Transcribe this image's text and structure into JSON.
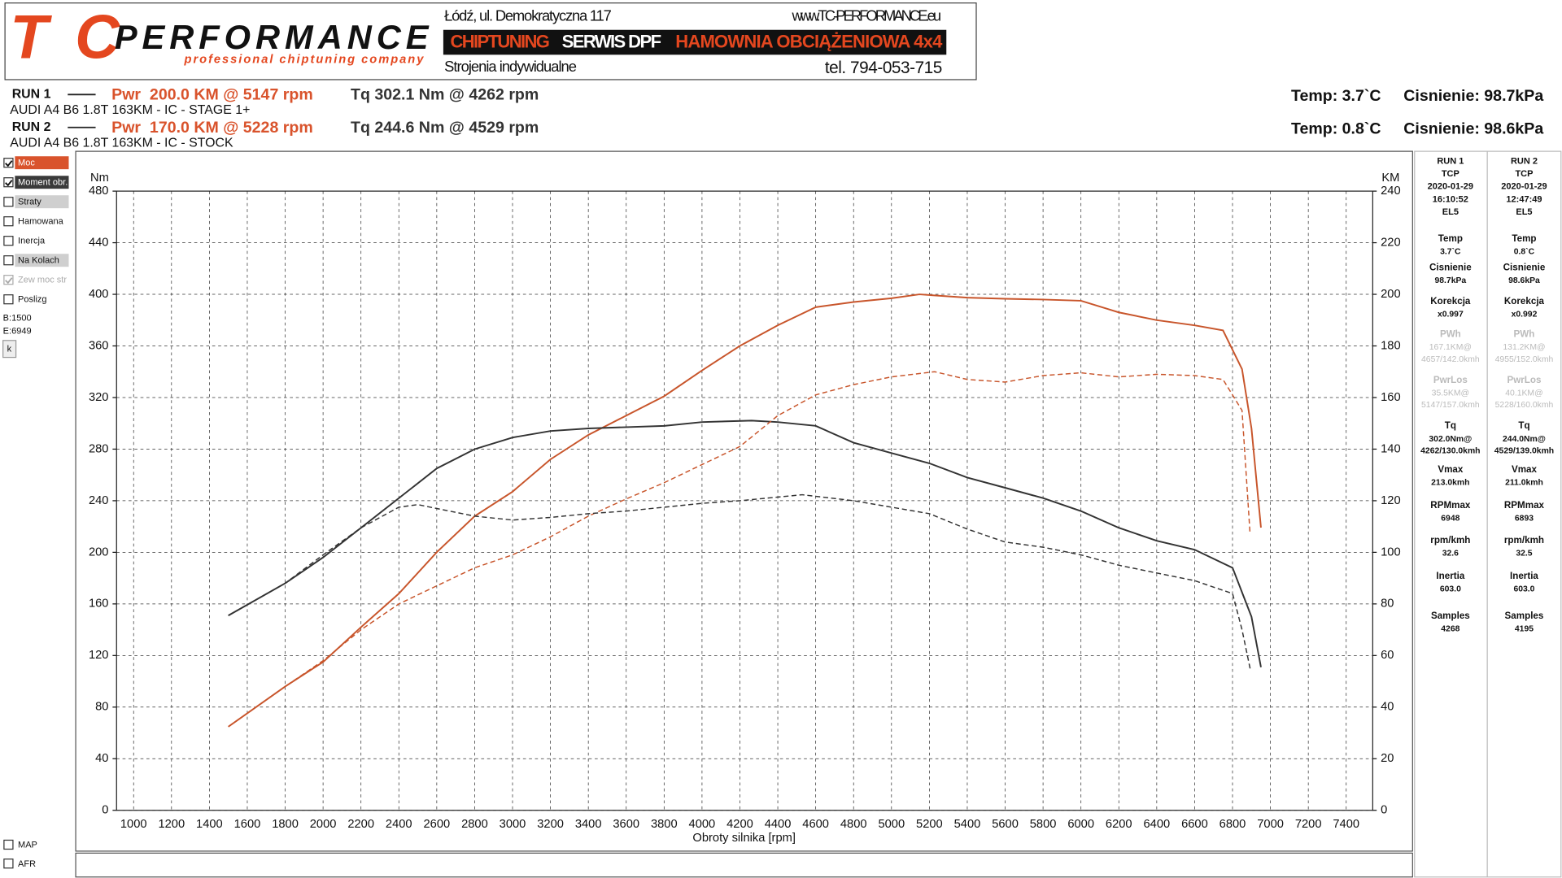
{
  "header": {
    "logo_tc": "TC",
    "logo_name": "PERFORMANCE",
    "logo_tagline": "professional chiptuning company",
    "address": "Łódź, ul. Demokratyczna 117",
    "website": "www.TC-PERFORMANCE.eu",
    "banner": [
      "CHIPTUNING",
      "SERWIS DPF",
      "HAMOWNIA OBCIĄŻENIOWA 4x4"
    ],
    "subline": "Strojenia indywidualne",
    "phone": "tel. 794-053-715"
  },
  "runs": [
    {
      "label": "RUN 1",
      "power": "Pwr  200.0 KM @ 5147 rpm",
      "torque": "Tq 302.1 Nm @ 4262 rpm",
      "car": "AUDI A4 B6 1.8T 163KM - IC - STAGE 1+",
      "temp": "Temp: 3.7`C",
      "pressure": "Cisnienie: 98.7kPa"
    },
    {
      "label": "RUN 2",
      "power": "Pwr  170.0 KM @ 5228 rpm",
      "torque": "Tq 244.6 Nm @ 4529 rpm",
      "car": "AUDI A4 B6 1.8T 163KM - IC - STOCK",
      "temp": "Temp: 0.8`C",
      "pressure": "Cisnienie: 98.6kPa"
    }
  ],
  "checkboxes": [
    {
      "label": "Moc",
      "checked": true,
      "color": "#d9532c"
    },
    {
      "label": "Moment obr.",
      "checked": true,
      "color": "#3a3a3a"
    },
    {
      "label": "Straty",
      "checked": false,
      "color": "#cfcfcf"
    },
    {
      "label": "Hamowana",
      "checked": false
    },
    {
      "label": "Inercja",
      "checked": false
    },
    {
      "label": "Na Kolach",
      "checked": false,
      "color": "#cfcfcf"
    },
    {
      "label": "Zew moc str",
      "checked": true,
      "disabled": true
    },
    {
      "label": "Poslizg",
      "checked": false
    }
  ],
  "range": [
    "B:1500",
    "E:6949"
  ],
  "button": "k",
  "bottom_checkboxes": [
    "MAP",
    "AFR"
  ],
  "panel": [
    {
      "head": [
        "RUN 1",
        "TCP",
        "2020-01-29",
        "16:10:52",
        "EL5"
      ],
      "items": [
        {
          "label": "Temp",
          "value": [
            "3.7`C"
          ]
        },
        {
          "label": "Cisnienie",
          "value": [
            "98.7kPa"
          ]
        },
        {
          "label": "Korekcja",
          "value": [
            "x0.997"
          ]
        },
        {
          "label": "PWh",
          "value": [
            "167.1KM@",
            "4657/142.0kmh"
          ],
          "muted": true
        },
        {
          "label": "PwrLos",
          "value": [
            "35.5KM@",
            "5147/157.0kmh"
          ],
          "muted": true
        },
        {
          "label": "Tq",
          "value": [
            "302.0Nm@",
            "4262/130.0kmh"
          ]
        },
        {
          "label": "Vmax",
          "value": [
            "213.0kmh"
          ]
        },
        {
          "label": "RPMmax",
          "value": [
            "6948"
          ]
        },
        {
          "label": "rpm/kmh",
          "value": [
            "32.6"
          ]
        },
        {
          "label": "Inertia",
          "value": [
            "603.0"
          ]
        },
        {
          "label": "Samples",
          "value": [
            "4268"
          ]
        }
      ]
    },
    {
      "head": [
        "RUN 2",
        "TCP",
        "2020-01-29",
        "12:47:49",
        "EL5"
      ],
      "items": [
        {
          "label": "Temp",
          "value": [
            "0.8`C"
          ]
        },
        {
          "label": "Cisnienie",
          "value": [
            "98.6kPa"
          ]
        },
        {
          "label": "Korekcja",
          "value": [
            "x0.992"
          ]
        },
        {
          "label": "PWh",
          "value": [
            "131.2KM@",
            "4955/152.0kmh"
          ],
          "muted": true
        },
        {
          "label": "PwrLos",
          "value": [
            "40.1KM@",
            "5228/160.0kmh"
          ],
          "muted": true
        },
        {
          "label": "Tq",
          "value": [
            "244.0Nm@",
            "4529/139.0kmh"
          ]
        },
        {
          "label": "Vmax",
          "value": [
            "211.0kmh"
          ]
        },
        {
          "label": "RPMmax",
          "value": [
            "6893"
          ]
        },
        {
          "label": "rpm/kmh",
          "value": [
            "32.5"
          ]
        },
        {
          "label": "Inertia",
          "value": [
            "603.0"
          ]
        },
        {
          "label": "Samples",
          "value": [
            "4195"
          ]
        }
      ]
    }
  ],
  "chart_data": {
    "type": "line",
    "x_label": "Obroty silnika [rpm]",
    "y_label": "Nm",
    "y2_label": "KM",
    "grid": true,
    "xlim": [
      910,
      7540
    ],
    "ylim": [
      0,
      480
    ],
    "y2lim": [
      0,
      240
    ],
    "xticks": [
      1000,
      1200,
      1400,
      1600,
      1800,
      2000,
      2200,
      2400,
      2600,
      2800,
      3000,
      3200,
      3400,
      3600,
      3800,
      4000,
      4200,
      4400,
      4600,
      4800,
      5000,
      5200,
      5400,
      5600,
      5800,
      6000,
      6200,
      6400,
      6600,
      6800,
      7000,
      7200,
      7400
    ],
    "yticks": [
      0,
      40,
      80,
      120,
      160,
      200,
      240,
      280,
      320,
      360,
      400,
      440,
      480
    ],
    "y2ticks": [
      0,
      20,
      40,
      60,
      80,
      100,
      120,
      140,
      160,
      180,
      200,
      220,
      240
    ],
    "series": [
      {
        "color": "#c8552b",
        "dash": false,
        "axis": "y2",
        "x": [
          1500,
          1800,
          2000,
          2200,
          2400,
          2600,
          2800,
          3000,
          3200,
          3400,
          3600,
          3800,
          4000,
          4200,
          4400,
          4600,
          4800,
          5000,
          5147,
          5400,
          5600,
          5800,
          6000,
          6200,
          6400,
          6600,
          6750,
          6850,
          6900,
          6950
        ],
        "values": [
          32.4,
          48,
          57.5,
          71,
          84,
          100,
          114,
          123.5,
          136,
          145.5,
          153,
          160.5,
          170.5,
          180,
          188,
          195,
          197,
          198.5,
          200,
          198.7,
          198.3,
          198,
          197.5,
          193,
          190,
          188,
          186,
          171,
          148,
          109.6
        ]
      },
      {
        "color": "#333333",
        "dash": false,
        "axis": "y",
        "x": [
          1500,
          1800,
          2000,
          2200,
          2400,
          2600,
          2800,
          3000,
          3200,
          3400,
          3600,
          3800,
          4000,
          4262,
          4400,
          4600,
          4800,
          5000,
          5200,
          5400,
          5600,
          5800,
          6000,
          6200,
          6400,
          6600,
          6800,
          6900,
          6950
        ],
        "values": [
          151,
          176,
          196,
          219,
          242,
          265,
          280,
          289,
          294,
          296,
          297,
          298,
          301,
          302.1,
          301,
          298,
          285,
          277,
          269,
          258,
          250,
          242,
          232,
          219,
          209,
          202,
          188,
          150,
          111
        ]
      },
      {
        "color": "#c8552b",
        "dash": true,
        "axis": "y2",
        "x": [
          1500,
          1800,
          2000,
          2200,
          2400,
          2600,
          2800,
          3000,
          3200,
          3400,
          3600,
          3800,
          4000,
          4200,
          4400,
          4600,
          4800,
          5000,
          5228,
          5400,
          5600,
          5800,
          6000,
          6200,
          6400,
          6600,
          6750,
          6850,
          6893
        ],
        "values": [
          32.4,
          48,
          58,
          70,
          80,
          87,
          94,
          99,
          106,
          114,
          120.7,
          127,
          134,
          141,
          153,
          161,
          165,
          168,
          170,
          167,
          166,
          168.5,
          169.6,
          168,
          169,
          168.5,
          167,
          155,
          107
        ]
      },
      {
        "color": "#333333",
        "dash": true,
        "axis": "y",
        "x": [
          1500,
          1800,
          2000,
          2200,
          2400,
          2500,
          2600,
          2800,
          3000,
          3200,
          3400,
          3600,
          3800,
          4000,
          4200,
          4529,
          4800,
          5000,
          5200,
          5400,
          5600,
          5800,
          6000,
          6200,
          6400,
          6600,
          6800,
          6850,
          6893
        ],
        "values": [
          151,
          176,
          198,
          219,
          235,
          237,
          234,
          228,
          225,
          227,
          230,
          232,
          235,
          238,
          240,
          244.6,
          240,
          235,
          230,
          218,
          208,
          204,
          198,
          190,
          184,
          178,
          168,
          140,
          110
        ]
      }
    ]
  }
}
